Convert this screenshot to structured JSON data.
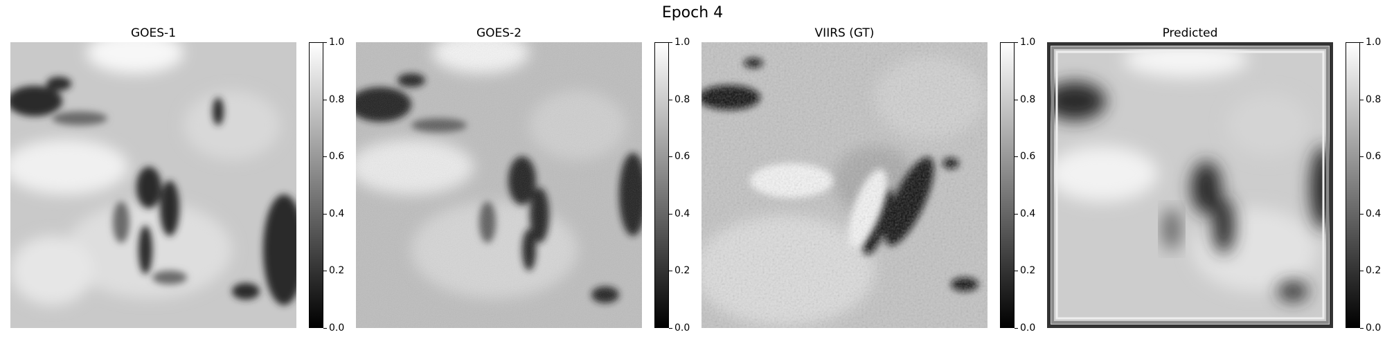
{
  "figure": {
    "title": "Epoch 4",
    "panels": [
      {
        "id": "goes1",
        "title": "GOES-1"
      },
      {
        "id": "goes2",
        "title": "GOES-2"
      },
      {
        "id": "viirs",
        "title": "VIIRS (GT)"
      },
      {
        "id": "pred",
        "title": "Predicted"
      }
    ],
    "colorbar": {
      "ticks": [
        "0.0",
        "0.2",
        "0.4",
        "0.6",
        "0.8",
        "1.0"
      ],
      "colormap": "gray"
    }
  }
}
